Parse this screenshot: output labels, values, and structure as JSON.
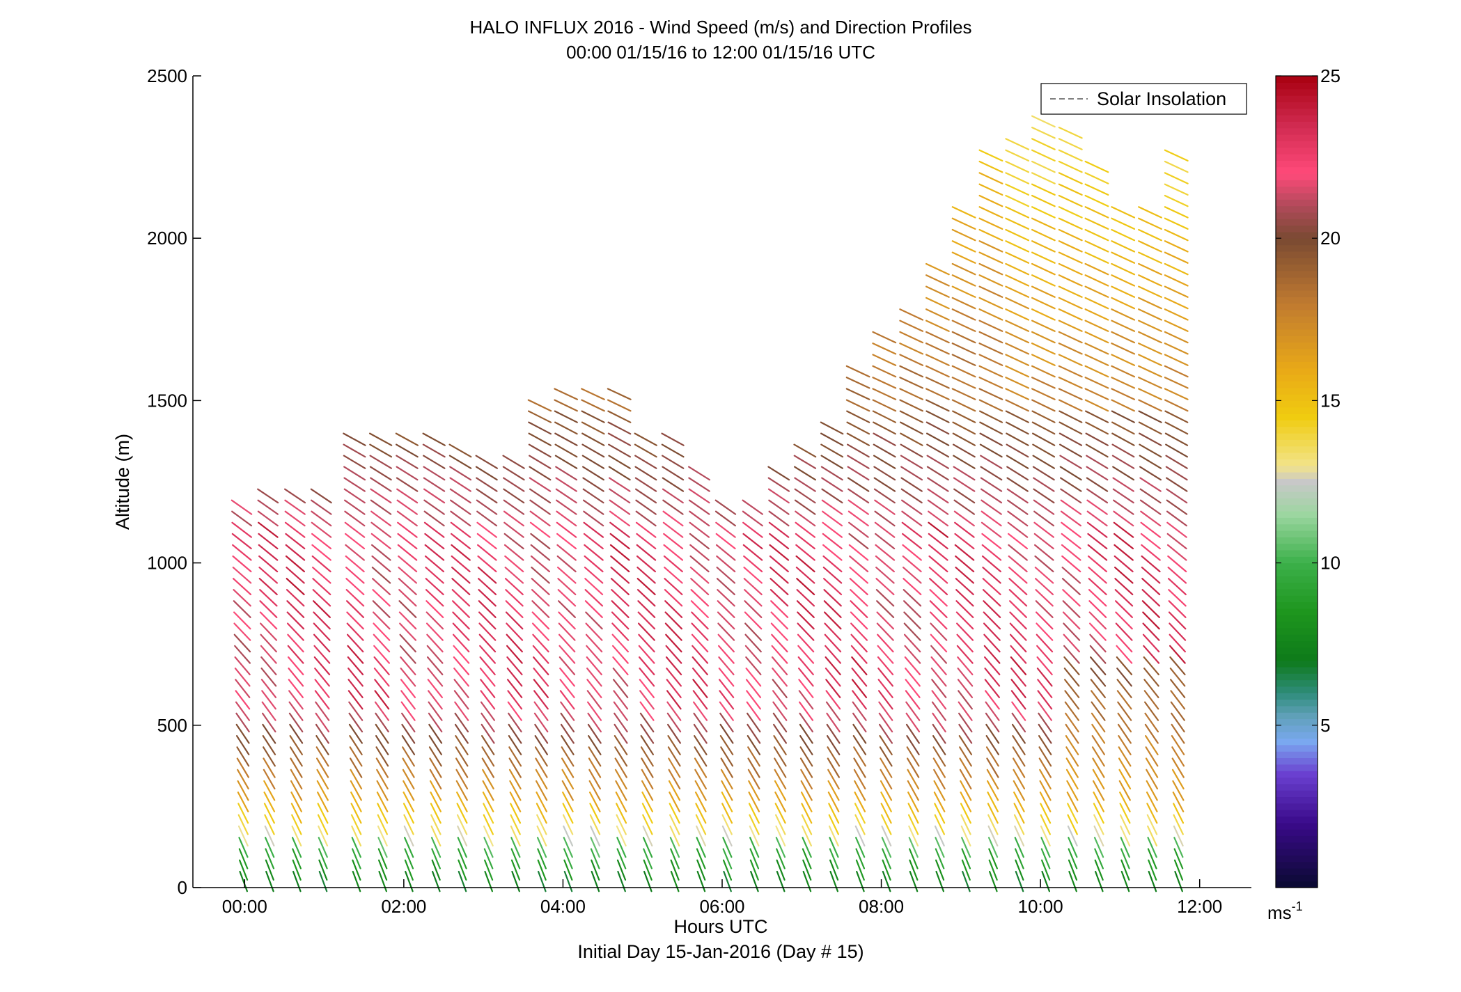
{
  "chart_data": {
    "type": "wind-barb profile",
    "title": "HALO INFLUX 2016 - Wind Speed (m/s) and Direction Profiles",
    "subtitle": "00:00 01/15/16 to 12:00 01/15/16  UTC",
    "xlabel": "Hours UTC",
    "xlabel2": "Initial Day 15-Jan-2016 (Day # 15)",
    "ylabel": "Altitude (m)",
    "xlim": [
      -0.65,
      12.65
    ],
    "ylim": [
      0,
      2500
    ],
    "x_ticks": [
      {
        "value": 0,
        "label": "00:00"
      },
      {
        "value": 2,
        "label": "02:00"
      },
      {
        "value": 4,
        "label": "04:00"
      },
      {
        "value": 6,
        "label": "06:00"
      },
      {
        "value": 8,
        "label": "08:00"
      },
      {
        "value": 10,
        "label": "10:00"
      },
      {
        "value": 12,
        "label": "12:00"
      }
    ],
    "y_ticks": [
      {
        "value": 0,
        "label": "0"
      },
      {
        "value": 500,
        "label": "500"
      },
      {
        "value": 1000,
        "label": "1000"
      },
      {
        "value": 1500,
        "label": "1500"
      },
      {
        "value": 2000,
        "label": "2000"
      },
      {
        "value": 2500,
        "label": "2500"
      }
    ],
    "legend": {
      "label": "Solar Insolation",
      "position": "top-right",
      "line_color": "#808080",
      "line_style": "dashed"
    },
    "colorbar": {
      "range": [
        0,
        25
      ],
      "ticks": [
        {
          "value": 5,
          "label": "5"
        },
        {
          "value": 10,
          "label": "10"
        },
        {
          "value": 15,
          "label": "15"
        },
        {
          "value": 20,
          "label": "20"
        },
        {
          "value": 25,
          "label": "25"
        }
      ],
      "unit_label": "ms",
      "unit_exponent": "-1",
      "stops": [
        {
          "v": 0,
          "c": "#0a0a30"
        },
        {
          "v": 2,
          "c": "#3a0a8a"
        },
        {
          "v": 3.5,
          "c": "#6a40d0"
        },
        {
          "v": 4.5,
          "c": "#7aa8f0"
        },
        {
          "v": 5.3,
          "c": "#5fa0b8"
        },
        {
          "v": 6,
          "c": "#2e8c7a"
        },
        {
          "v": 7,
          "c": "#0e7a1a"
        },
        {
          "v": 8.5,
          "c": "#1e961e"
        },
        {
          "v": 10,
          "c": "#3cb04a"
        },
        {
          "v": 11.5,
          "c": "#9cd6a0"
        },
        {
          "v": 12.5,
          "c": "#c8c8c8"
        },
        {
          "v": 13,
          "c": "#f2e48a"
        },
        {
          "v": 14.5,
          "c": "#f0cc10"
        },
        {
          "v": 16,
          "c": "#e8a818"
        },
        {
          "v": 18,
          "c": "#c07a30"
        },
        {
          "v": 20,
          "c": "#7a4a32"
        },
        {
          "v": 21,
          "c": "#b04a5a"
        },
        {
          "v": 22,
          "c": "#ff4a7a"
        },
        {
          "v": 23.5,
          "c": "#d02a50"
        },
        {
          "v": 25,
          "c": "#a80010"
        }
      ]
    },
    "profiles": {
      "times": [
        0,
        0.33,
        0.67,
        1.0,
        1.42,
        1.75,
        2.08,
        2.42,
        2.75,
        3.08,
        3.42,
        3.75,
        4.08,
        4.42,
        4.75,
        5.08,
        5.42,
        5.75,
        6.08,
        6.42,
        6.75,
        7.08,
        7.42,
        7.75,
        8.08,
        8.42,
        8.75,
        9.08,
        9.42,
        9.75,
        10.08,
        10.42,
        10.75,
        11.08,
        11.42,
        11.75
      ],
      "top_altitudes": [
        1180,
        1200,
        1200,
        1200,
        1390,
        1390,
        1390,
        1390,
        1340,
        1320,
        1320,
        1480,
        1520,
        1520,
        1520,
        1390,
        1390,
        1290,
        1180,
        1180,
        1290,
        1350,
        1440,
        1600,
        1700,
        1770,
        1900,
        2100,
        2250,
        2300,
        2360,
        2330,
        2220,
        2100,
        2080,
        2270
      ],
      "wind_direction_deg_low": 200,
      "wind_direction_deg_high": 245,
      "notes_visible": []
    }
  }
}
